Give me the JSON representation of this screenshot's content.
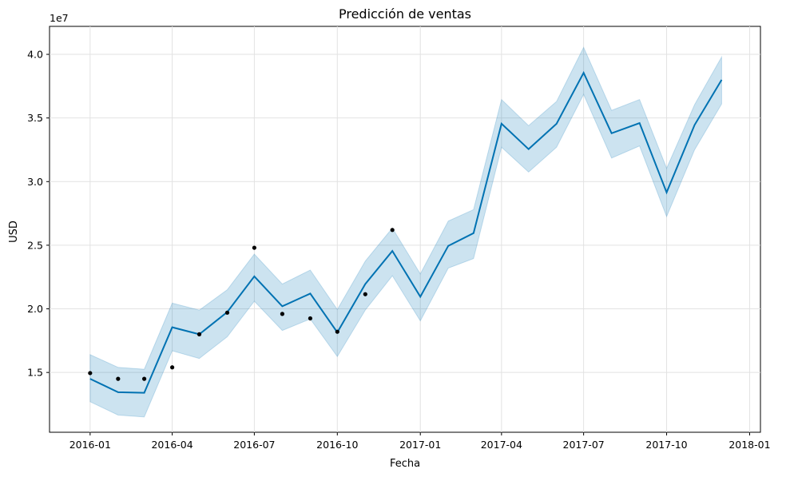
{
  "chart_data": {
    "type": "line",
    "title": "Predicción de ventas",
    "xlabel": "Fecha",
    "ylabel": "USD",
    "y_multiplier_label": "1e7",
    "xlim": [
      "2015-11-17",
      "2018-01-13"
    ],
    "ylim": [
      10300000.0,
      42200000.0
    ],
    "grid": true,
    "x_ticks": [
      {
        "date": "2016-01-01",
        "label": "2016-01"
      },
      {
        "date": "2016-04-01",
        "label": "2016-04"
      },
      {
        "date": "2016-07-01",
        "label": "2016-07"
      },
      {
        "date": "2016-10-01",
        "label": "2016-10"
      },
      {
        "date": "2017-01-01",
        "label": "2017-01"
      },
      {
        "date": "2017-04-01",
        "label": "2017-04"
      },
      {
        "date": "2017-07-01",
        "label": "2017-07"
      },
      {
        "date": "2017-10-01",
        "label": "2017-10"
      },
      {
        "date": "2018-01-01",
        "label": "2018-01"
      }
    ],
    "y_ticks": [
      {
        "value": 15000000.0,
        "label": "1.5"
      },
      {
        "value": 20000000.0,
        "label": "2.0"
      },
      {
        "value": 25000000.0,
        "label": "2.5"
      },
      {
        "value": 30000000.0,
        "label": "3.0"
      },
      {
        "value": 35000000.0,
        "label": "3.5"
      },
      {
        "value": 40000000.0,
        "label": "4.0"
      }
    ],
    "colors": {
      "forecast": "#0072B2",
      "interval": "#0072B2",
      "actual": "#000000",
      "grid": "#e2e2e2"
    },
    "series": [
      {
        "kind": "actual",
        "x": [
          "2016-01-01",
          "2016-02-01",
          "2016-03-01",
          "2016-04-01",
          "2016-05-01",
          "2016-06-01",
          "2016-07-01",
          "2016-08-01",
          "2016-09-01",
          "2016-10-01",
          "2016-11-01",
          "2016-12-01"
        ],
        "y": [
          14950000,
          14500000,
          14500000,
          15400000,
          18000000,
          19700000,
          24800000,
          19600000,
          19250000,
          18200000,
          21150000,
          26200000
        ]
      },
      {
        "kind": "forecast",
        "x": [
          "2016-01-01",
          "2016-02-01",
          "2016-03-01",
          "2016-04-01",
          "2016-05-01",
          "2016-06-01",
          "2016-07-01",
          "2016-08-01",
          "2016-09-01",
          "2016-10-01",
          "2016-11-01",
          "2016-12-01",
          "2017-01-01",
          "2017-02-01",
          "2017-03-01",
          "2017-04-01",
          "2017-05-01",
          "2017-06-01",
          "2017-07-01",
          "2017-08-01",
          "2017-09-01",
          "2017-10-01",
          "2017-11-01",
          "2017-12-01"
        ],
        "y": [
          14500000,
          13450000,
          13400000,
          18550000,
          18000000,
          19750000,
          22550000,
          20200000,
          21200000,
          18150000,
          21950000,
          24550000,
          20950000,
          24950000,
          25950000,
          34550000,
          32550000,
          34550000,
          38550000,
          33800000,
          34600000,
          29150000,
          34450000,
          38000000
        ],
        "lower": [
          12700000,
          11650000,
          11500000,
          16700000,
          16100000,
          17800000,
          20600000,
          18300000,
          19200000,
          16250000,
          19900000,
          22600000,
          19050000,
          23200000,
          23950000,
          32700000,
          30750000,
          32700000,
          36850000,
          31850000,
          32800000,
          27250000,
          32500000,
          36100000
        ],
        "upper": [
          16400000,
          15400000,
          15250000,
          20450000,
          19900000,
          21500000,
          24300000,
          21950000,
          23050000,
          19950000,
          23750000,
          26350000,
          22750000,
          26900000,
          27800000,
          36450000,
          34400000,
          36300000,
          40550000,
          35600000,
          36450000,
          31050000,
          36050000,
          39800000
        ]
      }
    ]
  }
}
